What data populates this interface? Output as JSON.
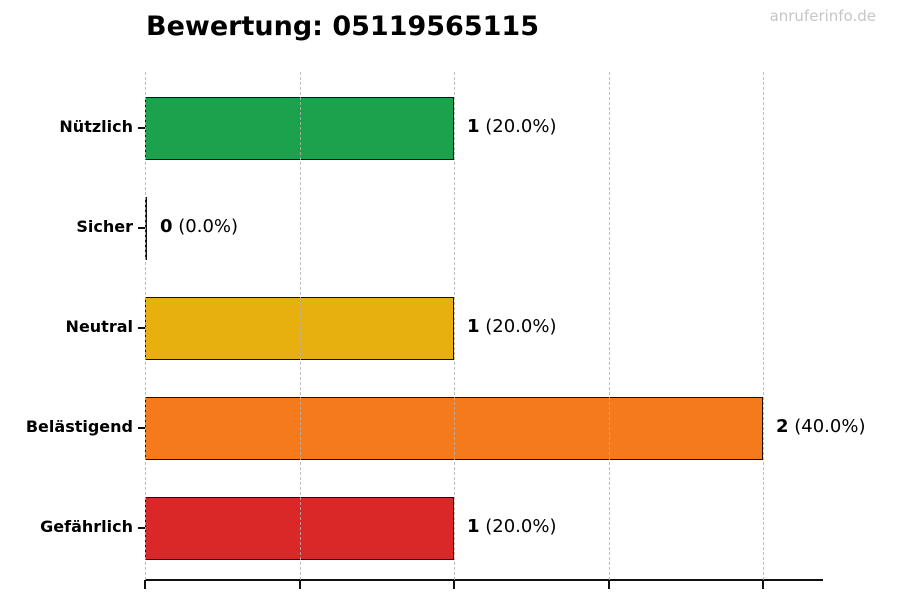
{
  "page": {
    "title": "Bewertung: 05119565115",
    "watermark": "anruferinfo.de"
  },
  "chart_data": {
    "type": "bar",
    "orientation": "horizontal",
    "title": "Bewertung: 05119565115",
    "categories": [
      "Nützlich",
      "Sicher",
      "Neutral",
      "Belästigend",
      "Gefährlich"
    ],
    "values": [
      1,
      0,
      1,
      2,
      1
    ],
    "percentages": [
      20.0,
      0.0,
      20.0,
      40.0,
      20.0
    ],
    "value_labels": [
      {
        "count": "1",
        "pct": " (20.0%)"
      },
      {
        "count": "0",
        "pct": " (0.0%)"
      },
      {
        "count": "1",
        "pct": " (20.0%)"
      },
      {
        "count": "2",
        "pct": " (40.0%)"
      },
      {
        "count": "1",
        "pct": " (20.0%)"
      }
    ],
    "bar_colors": [
      "#1ca24c",
      "#111111",
      "#e8b00e",
      "#f57a1b",
      "#da2727"
    ],
    "bar_edge_color": "#111111",
    "xlabel": "",
    "ylabel": "",
    "xlim": [
      0,
      2.2
    ],
    "xticks": [
      0,
      0.5,
      1.0,
      1.5,
      2.0
    ],
    "grid": true,
    "grid_style": "dashed-vertical",
    "legend": null
  }
}
